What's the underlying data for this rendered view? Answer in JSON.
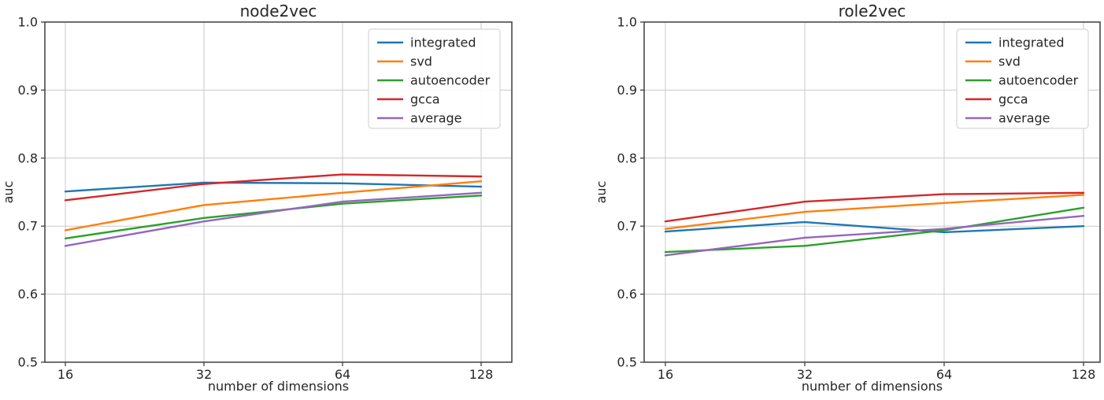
{
  "figure": {
    "background": "#ffffff",
    "text_color": "#262626",
    "grid_color": "#c9c9c9",
    "spine_color": "#3f3f3f"
  },
  "chart_data": [
    {
      "type": "line",
      "title": "node2vec",
      "xlabel": "number of dimensions",
      "ylabel": "auc",
      "categories": [
        16,
        32,
        64,
        128
      ],
      "x_tick_labels": [
        "16",
        "32",
        "64",
        "128"
      ],
      "y_tick_labels": [
        "1.0",
        "0.9",
        "0.8",
        "0.7",
        "0.6",
        "0.5"
      ],
      "ylim": [
        0.5,
        1.0
      ],
      "y_tick_step": 0.1,
      "grid": true,
      "legend_position": "upper right",
      "series": [
        {
          "name": "integrated",
          "color": "#1f77b4",
          "values": [
            0.751,
            0.764,
            0.763,
            0.758
          ]
        },
        {
          "name": "svd",
          "color": "#ff7f0e",
          "values": [
            0.694,
            0.731,
            0.749,
            0.766
          ]
        },
        {
          "name": "autoencoder",
          "color": "#2ca02c",
          "values": [
            0.682,
            0.712,
            0.733,
            0.745
          ]
        },
        {
          "name": "gcca",
          "color": "#d62728",
          "values": [
            0.738,
            0.762,
            0.776,
            0.773
          ]
        },
        {
          "name": "average",
          "color": "#9467bd",
          "values": [
            0.671,
            0.707,
            0.736,
            0.749
          ]
        }
      ]
    },
    {
      "type": "line",
      "title": "role2vec",
      "xlabel": "number of dimensions",
      "ylabel": "auc",
      "categories": [
        16,
        32,
        64,
        128
      ],
      "x_tick_labels": [
        "16",
        "32",
        "64",
        "128"
      ],
      "y_tick_labels": [
        "1.0",
        "0.9",
        "0.8",
        "0.7",
        "0.6",
        "0.5"
      ],
      "ylim": [
        0.5,
        1.0
      ],
      "y_tick_step": 0.1,
      "grid": true,
      "legend_position": "upper right",
      "series": [
        {
          "name": "integrated",
          "color": "#1f77b4",
          "values": [
            0.692,
            0.706,
            0.691,
            0.7
          ]
        },
        {
          "name": "svd",
          "color": "#ff7f0e",
          "values": [
            0.696,
            0.721,
            0.734,
            0.746
          ]
        },
        {
          "name": "autoencoder",
          "color": "#2ca02c",
          "values": [
            0.662,
            0.671,
            0.694,
            0.727
          ]
        },
        {
          "name": "gcca",
          "color": "#d62728",
          "values": [
            0.707,
            0.736,
            0.747,
            0.749
          ]
        },
        {
          "name": "average",
          "color": "#9467bd",
          "values": [
            0.657,
            0.683,
            0.696,
            0.715
          ]
        }
      ]
    }
  ]
}
